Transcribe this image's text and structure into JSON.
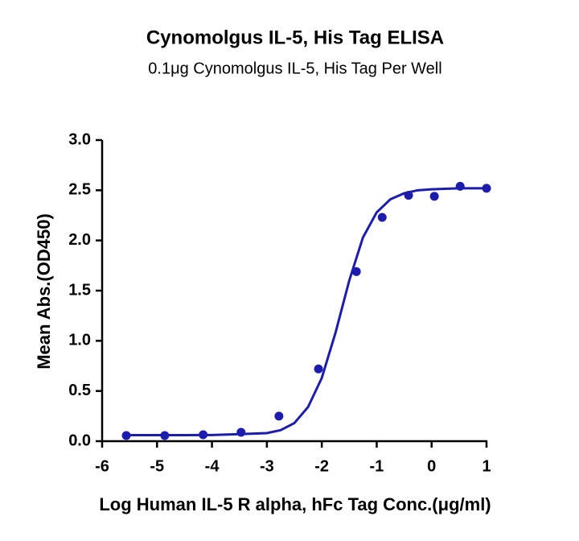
{
  "chart_data": {
    "type": "scatter",
    "title": "Cynomolgus IL-5, His Tag ELISA",
    "subtitle": "0.1μg Cynomolgus IL-5, His Tag Per Well",
    "x_label": "Log Human IL-5 R alpha, hFc Tag Conc.(μg/ml)",
    "y_label": "Mean Abs.(OD450)",
    "xlim": [
      -6,
      1
    ],
    "xticks": [
      -6,
      -5,
      -4,
      -3,
      -2,
      -1,
      0,
      1
    ],
    "ylim": [
      0,
      3
    ],
    "yticks": [
      {
        "value": 0,
        "label": "0.0"
      },
      0.5,
      {
        "value": 1,
        "label": "1.0"
      },
      1.5,
      {
        "value": 2,
        "label": "2.0"
      },
      2.5,
      {
        "value": 3,
        "label": "3.0"
      }
    ],
    "series": [
      {
        "type": "scatter",
        "color": "#1c1caf",
        "x": [
          -5.56,
          -4.86,
          -4.16,
          -3.47,
          -2.78,
          -2.06,
          -1.37,
          -0.9,
          -0.42,
          0.05,
          0.52,
          1.0
        ],
        "values": [
          0.056,
          0.056,
          0.064,
          0.088,
          0.25,
          0.72,
          1.69,
          2.23,
          2.45,
          2.44,
          2.54,
          2.52
        ]
      },
      {
        "type": "line",
        "color": "#1c1caf",
        "x": [
          -5.6,
          -5,
          -4.5,
          -4,
          -3.5,
          -3,
          -2.75,
          -2.5,
          -2.25,
          -2,
          -1.75,
          -1.5,
          -1.25,
          -1,
          -0.75,
          -0.5,
          -0.25,
          0,
          0.5,
          1
        ],
        "values": [
          0.06,
          0.06,
          0.06,
          0.061,
          0.07,
          0.08,
          0.11,
          0.18,
          0.34,
          0.63,
          1.08,
          1.6,
          2.03,
          2.28,
          2.41,
          2.47,
          2.5,
          2.51,
          2.52,
          2.52
        ]
      }
    ]
  }
}
